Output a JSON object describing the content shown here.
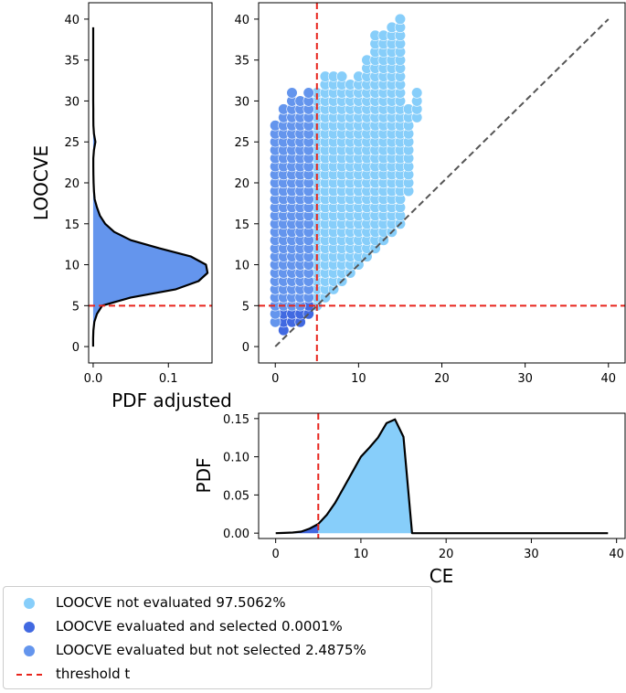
{
  "colors": {
    "not_evaluated": "#87cefa",
    "selected": "#4169e1",
    "not_selected": "#6495ed",
    "threshold": "#e8251d",
    "diagonal": "#555555"
  },
  "chart_data": [
    {
      "id": "scatter",
      "type": "scatter",
      "xlim": [
        -2,
        42
      ],
      "ylim": [
        -2,
        42
      ],
      "xticks": [
        "0",
        "10",
        "20",
        "30",
        "40"
      ],
      "yticks": [
        "0",
        "5",
        "10",
        "15",
        "20",
        "25",
        "30",
        "35",
        "40"
      ],
      "xtick_values": [
        0,
        10,
        20,
        30,
        40
      ],
      "ytick_values": [
        0,
        5,
        10,
        15,
        20,
        25,
        30,
        35,
        40
      ],
      "threshold": 5,
      "diagonal": [
        [
          0,
          0
        ],
        [
          40,
          40
        ]
      ],
      "series": [
        {
          "name": "LOOCVE not evaluated",
          "color_key": "not_evaluated",
          "columns": [
            [
              5,
              5,
              31
            ],
            [
              6,
              6,
              33
            ],
            [
              7,
              7,
              33
            ],
            [
              8,
              8,
              33
            ],
            [
              9,
              9,
              32
            ],
            [
              10,
              10,
              33
            ],
            [
              11,
              11,
              35
            ],
            [
              12,
              12,
              38
            ],
            [
              13,
              13,
              38
            ],
            [
              14,
              14,
              39
            ],
            [
              15,
              15,
              40
            ],
            [
              16,
              19,
              29
            ],
            [
              17,
              28,
              31
            ]
          ]
        },
        {
          "name": "LOOCVE evaluated and selected",
          "color_key": "selected",
          "columns": [
            [
              1,
              2,
              4
            ],
            [
              2,
              3,
              4
            ],
            [
              3,
              3,
              4
            ],
            [
              4,
              4,
              5
            ]
          ]
        },
        {
          "name": "LOOCVE evaluated but not selected",
          "color_key": "not_selected",
          "columns": [
            [
              0,
              3,
              27
            ],
            [
              1,
              5,
              29
            ],
            [
              2,
              5,
              31
            ],
            [
              3,
              5,
              30
            ],
            [
              4,
              6,
              31
            ]
          ]
        }
      ]
    },
    {
      "id": "left_pdf",
      "type": "area",
      "xlabel": "PDF adjusted",
      "ylabel": "LOOCVE",
      "xlim": [
        -0.006,
        0.158
      ],
      "ylim": [
        -2,
        42
      ],
      "xticks": [
        "0.0",
        "0.1"
      ],
      "xtick_values": [
        0.0,
        0.1
      ],
      "yticks": [
        "0",
        "5",
        "10",
        "15",
        "20",
        "25",
        "30",
        "35",
        "40"
      ],
      "ytick_values": [
        0,
        5,
        10,
        15,
        20,
        25,
        30,
        35,
        40
      ],
      "threshold": 5,
      "y": [
        0,
        1,
        2,
        3,
        4,
        5,
        6,
        7,
        8,
        9,
        10,
        11,
        12,
        13,
        14,
        15,
        16,
        17,
        18,
        19,
        20,
        21,
        22,
        23,
        24,
        25,
        26,
        27,
        28,
        29,
        30,
        31,
        32,
        33,
        34,
        35,
        36,
        37,
        38,
        39
      ],
      "values": [
        0.0,
        0.0,
        0.0003,
        0.0015,
        0.005,
        0.012,
        0.05,
        0.11,
        0.14,
        0.152,
        0.15,
        0.13,
        0.088,
        0.05,
        0.028,
        0.016,
        0.009,
        0.005,
        0.002,
        0.001,
        0.0005,
        0.0003,
        0.0002,
        0.0002,
        0.001,
        0.003,
        0.001,
        0.0003,
        0.0002,
        0.0002,
        0.0001,
        0.0001,
        0.0001,
        0.0001,
        0.0001,
        0.0001,
        0.0001,
        0.0001,
        0.0001,
        0.0001
      ]
    },
    {
      "id": "bottom_pdf",
      "type": "area",
      "xlabel": "CE",
      "ylabel": "PDF",
      "xlim": [
        -2,
        41
      ],
      "ylim": [
        -0.007,
        0.157
      ],
      "xticks": [
        "0",
        "10",
        "20",
        "30",
        "40"
      ],
      "xtick_values": [
        0,
        10,
        20,
        30,
        40
      ],
      "yticks": [
        "0.00",
        "0.05",
        "0.10",
        "0.15"
      ],
      "ytick_values": [
        0.0,
        0.05,
        0.1,
        0.15
      ],
      "threshold": 5,
      "x": [
        0,
        1,
        2,
        3,
        4,
        5,
        6,
        7,
        8,
        9,
        10,
        11,
        12,
        13,
        14,
        15,
        16,
        17,
        18,
        19,
        20,
        21,
        22,
        23,
        24,
        25,
        26,
        27,
        28,
        29,
        30,
        31,
        32,
        33,
        34,
        35,
        36,
        37,
        38,
        39
      ],
      "values": [
        0.0,
        0.0003,
        0.0008,
        0.002,
        0.006,
        0.012,
        0.024,
        0.04,
        0.06,
        0.08,
        0.1,
        0.112,
        0.125,
        0.144,
        0.149,
        0.126,
        0.0,
        0.0,
        0.0,
        0.0,
        0.0,
        0.0,
        0.0,
        0.0,
        0.0,
        0.0,
        0.0,
        0.0,
        0.0,
        0.0,
        0.0,
        0.0,
        0.0,
        0.0,
        0.0,
        0.0,
        0.0,
        0.0,
        0.0,
        0.0
      ]
    }
  ],
  "legend": {
    "items": [
      {
        "label": "LOOCVE not evaluated 97.5062%",
        "color_key": "not_evaluated",
        "kind": "marker"
      },
      {
        "label": "LOOCVE evaluated and selected 0.0001%",
        "color_key": "selected",
        "kind": "marker"
      },
      {
        "label": "LOOCVE evaluated but not selected 2.4875%",
        "color_key": "not_selected",
        "kind": "marker"
      },
      {
        "label": "threshold t",
        "color_key": "threshold",
        "kind": "line"
      }
    ]
  }
}
